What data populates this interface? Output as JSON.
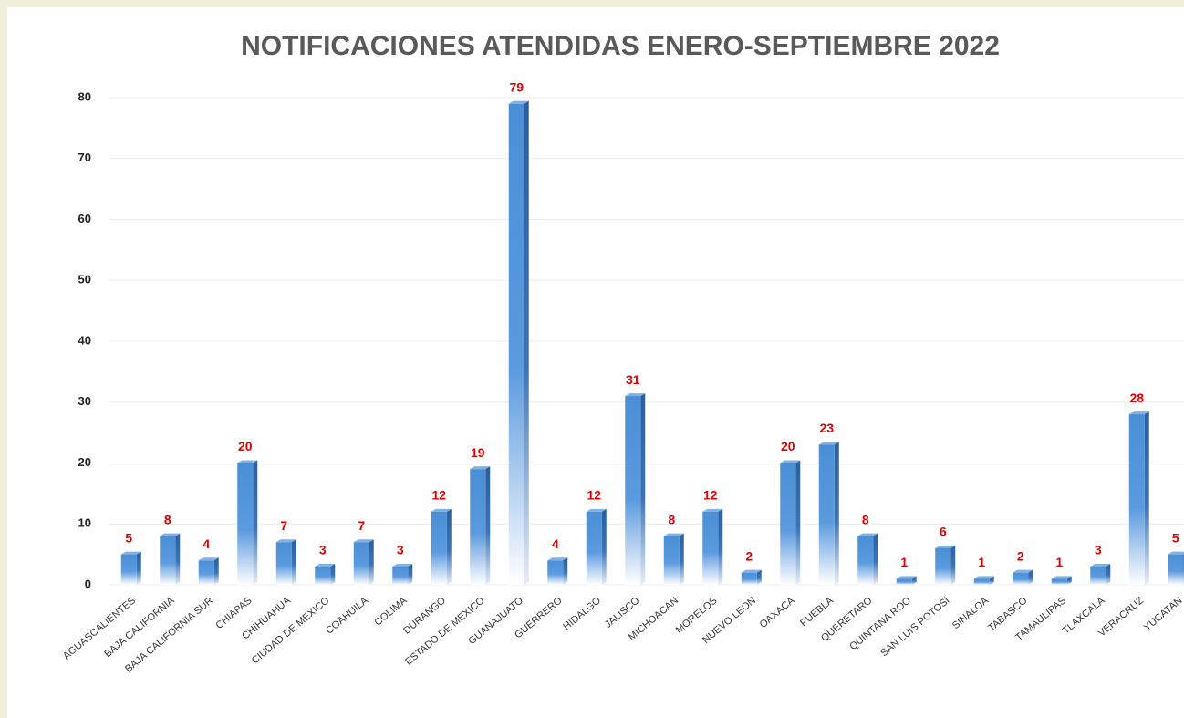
{
  "chart_data": {
    "type": "bar",
    "title": "NOTIFICACIONES ATENDIDAS ENERO-SEPTIEMBRE 2022",
    "categories": [
      "AGUASCALIENTES",
      "BAJA CALIFORNIA",
      "BAJA CALIFORNIA SUR",
      "CHIAPAS",
      "CHIHUAHUA",
      "CIUDAD DE MEXICO",
      "COAHUILA",
      "COLIMA",
      "DURANGO",
      "ESTADO DE MEXICO",
      "GUANAJUATO",
      "GUERRERO",
      "HIDALGO",
      "JALISCO",
      "MICHOACAN",
      "MORELOS",
      "NUEVO LEON",
      "OAXACA",
      "PUEBLA",
      "QUERETARO",
      "QUINTANA ROO",
      "SAN LUIS POTOSI",
      "SINALOA",
      "TABASCO",
      "TAMAULIPAS",
      "TLAXCALA",
      "VERACRUZ",
      "YUCATAN"
    ],
    "values": [
      5,
      8,
      4,
      20,
      7,
      3,
      7,
      3,
      12,
      19,
      79,
      4,
      12,
      31,
      8,
      12,
      2,
      20,
      23,
      8,
      1,
      6,
      1,
      2,
      1,
      3,
      28,
      5
    ],
    "color": "#4a8fd6",
    "ylim": [
      0,
      80
    ],
    "yticks": [
      0,
      10,
      20,
      30,
      40,
      50,
      60,
      70,
      80
    ],
    "grid": true
  }
}
